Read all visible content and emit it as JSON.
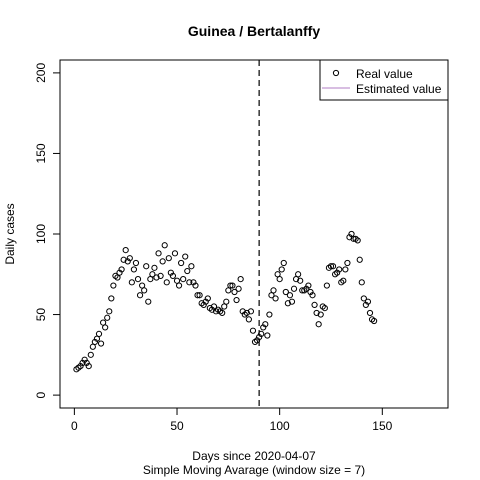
{
  "chart_data": {
    "type": "scatter",
    "title": "Guinea / Bertalanffy",
    "xlabel": "Days since 2020-04-07",
    "xlabel_sub": "Simple Moving Avarage (window size = 7)",
    "ylabel": "Daily cases",
    "xlim": [
      -7,
      182
    ],
    "ylim": [
      -8,
      208
    ],
    "xticks": [
      0,
      50,
      100,
      150
    ],
    "yticks": [
      0,
      50,
      100,
      150,
      200
    ],
    "x_tick_labels": [
      "0",
      "50",
      "100",
      "150"
    ],
    "y_tick_labels": [
      "0",
      "50",
      "100",
      "150",
      "200"
    ],
    "vertical_line": {
      "x": 90,
      "style": "dashed"
    },
    "legend": {
      "position": "top-right",
      "entries": [
        {
          "label": "Real value",
          "marker": "circle"
        },
        {
          "label": "Estimated value",
          "marker": "line",
          "color": "#b07cc6"
        }
      ]
    },
    "series": [
      {
        "name": "Real value",
        "marker": "open-circle",
        "color": "#000000",
        "x": [
          1,
          2,
          3,
          4,
          5,
          6,
          7,
          8,
          9,
          10,
          11,
          12,
          13,
          14,
          15,
          16,
          17,
          18,
          19,
          20,
          21,
          22,
          23,
          24,
          25,
          26,
          27,
          28,
          29,
          30,
          31,
          32,
          33,
          34,
          35,
          36,
          37,
          38,
          39,
          40,
          41,
          42,
          43,
          44,
          45,
          46,
          47,
          48,
          49,
          50,
          51,
          52,
          53,
          54,
          55,
          56,
          57,
          58,
          59,
          60,
          61,
          62,
          63,
          64,
          65,
          66,
          67,
          68,
          69,
          70,
          71,
          72,
          73,
          74,
          75,
          76,
          77,
          78,
          79,
          80,
          81,
          82,
          83,
          84,
          85,
          86,
          87,
          88,
          89,
          90,
          91,
          92,
          93,
          94,
          95,
          96,
          97,
          98,
          99,
          100,
          101,
          102,
          103,
          104,
          105,
          106,
          107,
          108,
          109,
          110,
          111,
          112,
          113,
          114,
          115,
          116,
          117,
          118,
          119,
          120,
          121,
          122,
          123,
          124,
          125,
          126,
          127,
          128,
          129,
          130,
          131,
          132,
          133,
          134,
          135,
          136,
          137,
          138,
          139,
          140,
          141,
          142,
          143,
          144,
          145,
          146
        ],
        "y": [
          16,
          17,
          18,
          20,
          22,
          20,
          18,
          25,
          30,
          33,
          35,
          38,
          32,
          45,
          42,
          48,
          52,
          60,
          68,
          74,
          73,
          76,
          78,
          84,
          90,
          83,
          85,
          70,
          78,
          82,
          72,
          62,
          68,
          65,
          80,
          58,
          72,
          75,
          79,
          73,
          88,
          74,
          83,
          93,
          70,
          85,
          76,
          74,
          88,
          71,
          68,
          82,
          72,
          86,
          77,
          70,
          80,
          70,
          68,
          62,
          62,
          57,
          56,
          58,
          60,
          54,
          53,
          55,
          52,
          53,
          52,
          51,
          55,
          58,
          65,
          68,
          68,
          64,
          59,
          66,
          72,
          52,
          50,
          51,
          47,
          52,
          40,
          33,
          34,
          36,
          38,
          42,
          44,
          37,
          50,
          62,
          65,
          60,
          75,
          72,
          78,
          82,
          64,
          57,
          62,
          58,
          66,
          72,
          75,
          71,
          65,
          65,
          66,
          68,
          64,
          62,
          56,
          51,
          44,
          50,
          55,
          54,
          68,
          79,
          80,
          80,
          75,
          76,
          78,
          70,
          71,
          78,
          82,
          98,
          100,
          97,
          97,
          96,
          84,
          70,
          60,
          56,
          58,
          51,
          47,
          46
        ]
      },
      {
        "name": "Estimated value",
        "marker": "line",
        "color": "#b07cc6",
        "x": [],
        "y": []
      }
    ]
  }
}
